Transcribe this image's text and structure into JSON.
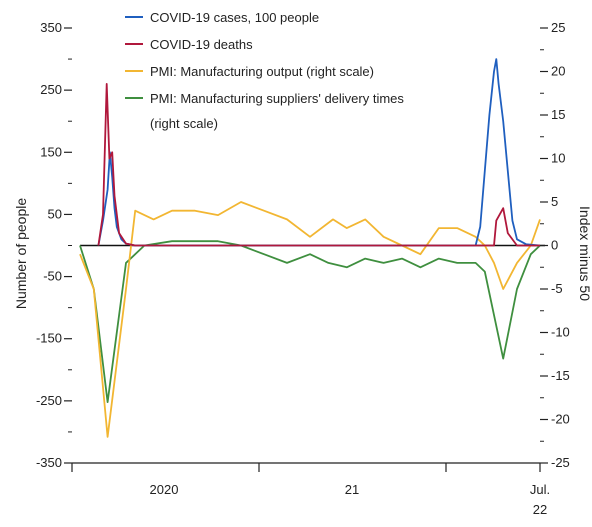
{
  "chart_data": {
    "type": "line",
    "x_categories": [
      "2020",
      "21",
      "Jul.",
      "22"
    ],
    "left_axis": {
      "label": "Number of people",
      "ticks": [
        "350",
        "250",
        "150",
        "50",
        "-50",
        "-150",
        "-250",
        "-350"
      ],
      "range": [
        -350,
        350
      ]
    },
    "right_axis": {
      "label": "Index minus 50",
      "ticks": [
        "25",
        "20",
        "15",
        "10",
        "5",
        "0",
        "-5",
        "-10",
        "-15",
        "-20",
        "-25"
      ],
      "range": [
        -25,
        25
      ]
    },
    "legend": [
      {
        "name": "COVID-19 cases, 100 people",
        "color": "#1f5fbf"
      },
      {
        "name": "COVID-19 deaths",
        "color": "#b0183c"
      },
      {
        "name": "PMI: Manufacturing output (right scale)",
        "color": "#f2b632"
      },
      {
        "name": "PMI: Manufacturing suppliers' delivery times",
        "name_line2": "(right scale)",
        "color": "#3f8f3f"
      }
    ],
    "series": [
      {
        "name": "COVID-19 cases, 100 people",
        "axis": "left",
        "color": "#1f5fbf",
        "points": [
          [
            0.04,
            0
          ],
          [
            0.05,
            40
          ],
          [
            0.06,
            90
          ],
          [
            0.065,
            150
          ],
          [
            0.07,
            110
          ],
          [
            0.075,
            60
          ],
          [
            0.08,
            30
          ],
          [
            0.09,
            10
          ],
          [
            0.1,
            3
          ],
          [
            0.12,
            0
          ],
          [
            0.3,
            0
          ],
          [
            0.86,
            0
          ],
          [
            0.87,
            30
          ],
          [
            0.88,
            120
          ],
          [
            0.89,
            210
          ],
          [
            0.9,
            280
          ],
          [
            0.905,
            300
          ],
          [
            0.91,
            260
          ],
          [
            0.92,
            200
          ],
          [
            0.93,
            120
          ],
          [
            0.94,
            40
          ],
          [
            0.95,
            10
          ],
          [
            0.97,
            2
          ],
          [
            1.0,
            0
          ]
        ]
      },
      {
        "name": "COVID-19 deaths",
        "axis": "left",
        "color": "#b0183c",
        "points": [
          [
            0.04,
            0
          ],
          [
            0.05,
            50
          ],
          [
            0.058,
            260
          ],
          [
            0.064,
            140
          ],
          [
            0.07,
            150
          ],
          [
            0.075,
            80
          ],
          [
            0.085,
            20
          ],
          [
            0.1,
            3
          ],
          [
            0.12,
            0
          ],
          [
            0.9,
            0
          ],
          [
            0.905,
            40
          ],
          [
            0.92,
            60
          ],
          [
            0.93,
            20
          ],
          [
            0.95,
            0
          ],
          [
            1.0,
            0
          ]
        ]
      },
      {
        "name": "PMI: Manufacturing output (right scale)",
        "axis": "right",
        "color": "#f2b632",
        "points": [
          [
            0.0,
            -1
          ],
          [
            0.03,
            -5
          ],
          [
            0.06,
            -22
          ],
          [
            0.1,
            -5
          ],
          [
            0.12,
            4
          ],
          [
            0.16,
            3
          ],
          [
            0.2,
            4
          ],
          [
            0.25,
            4
          ],
          [
            0.3,
            3.5
          ],
          [
            0.35,
            5
          ],
          [
            0.4,
            4
          ],
          [
            0.45,
            3
          ],
          [
            0.5,
            1
          ],
          [
            0.55,
            3
          ],
          [
            0.58,
            2
          ],
          [
            0.62,
            3
          ],
          [
            0.66,
            1
          ],
          [
            0.7,
            0
          ],
          [
            0.74,
            -1
          ],
          [
            0.78,
            2
          ],
          [
            0.82,
            2
          ],
          [
            0.86,
            1
          ],
          [
            0.88,
            0
          ],
          [
            0.9,
            -2
          ],
          [
            0.92,
            -5
          ],
          [
            0.95,
            -2
          ],
          [
            0.98,
            0
          ],
          [
            1.0,
            3
          ]
        ]
      },
      {
        "name": "PMI: Manufacturing suppliers' delivery times",
        "axis": "right",
        "color": "#3f8f3f",
        "points": [
          [
            0.0,
            0
          ],
          [
            0.03,
            -5
          ],
          [
            0.06,
            -18
          ],
          [
            0.1,
            -2
          ],
          [
            0.14,
            0
          ],
          [
            0.2,
            0.5
          ],
          [
            0.25,
            0.5
          ],
          [
            0.3,
            0.5
          ],
          [
            0.35,
            0
          ],
          [
            0.4,
            -1
          ],
          [
            0.45,
            -2
          ],
          [
            0.5,
            -1
          ],
          [
            0.54,
            -2
          ],
          [
            0.58,
            -2.5
          ],
          [
            0.62,
            -1.5
          ],
          [
            0.66,
            -2
          ],
          [
            0.7,
            -1.5
          ],
          [
            0.74,
            -2.5
          ],
          [
            0.78,
            -1.5
          ],
          [
            0.82,
            -2
          ],
          [
            0.86,
            -2
          ],
          [
            0.88,
            -3
          ],
          [
            0.9,
            -8
          ],
          [
            0.92,
            -13
          ],
          [
            0.95,
            -5
          ],
          [
            0.98,
            -1
          ],
          [
            1.0,
            0
          ]
        ]
      }
    ]
  }
}
